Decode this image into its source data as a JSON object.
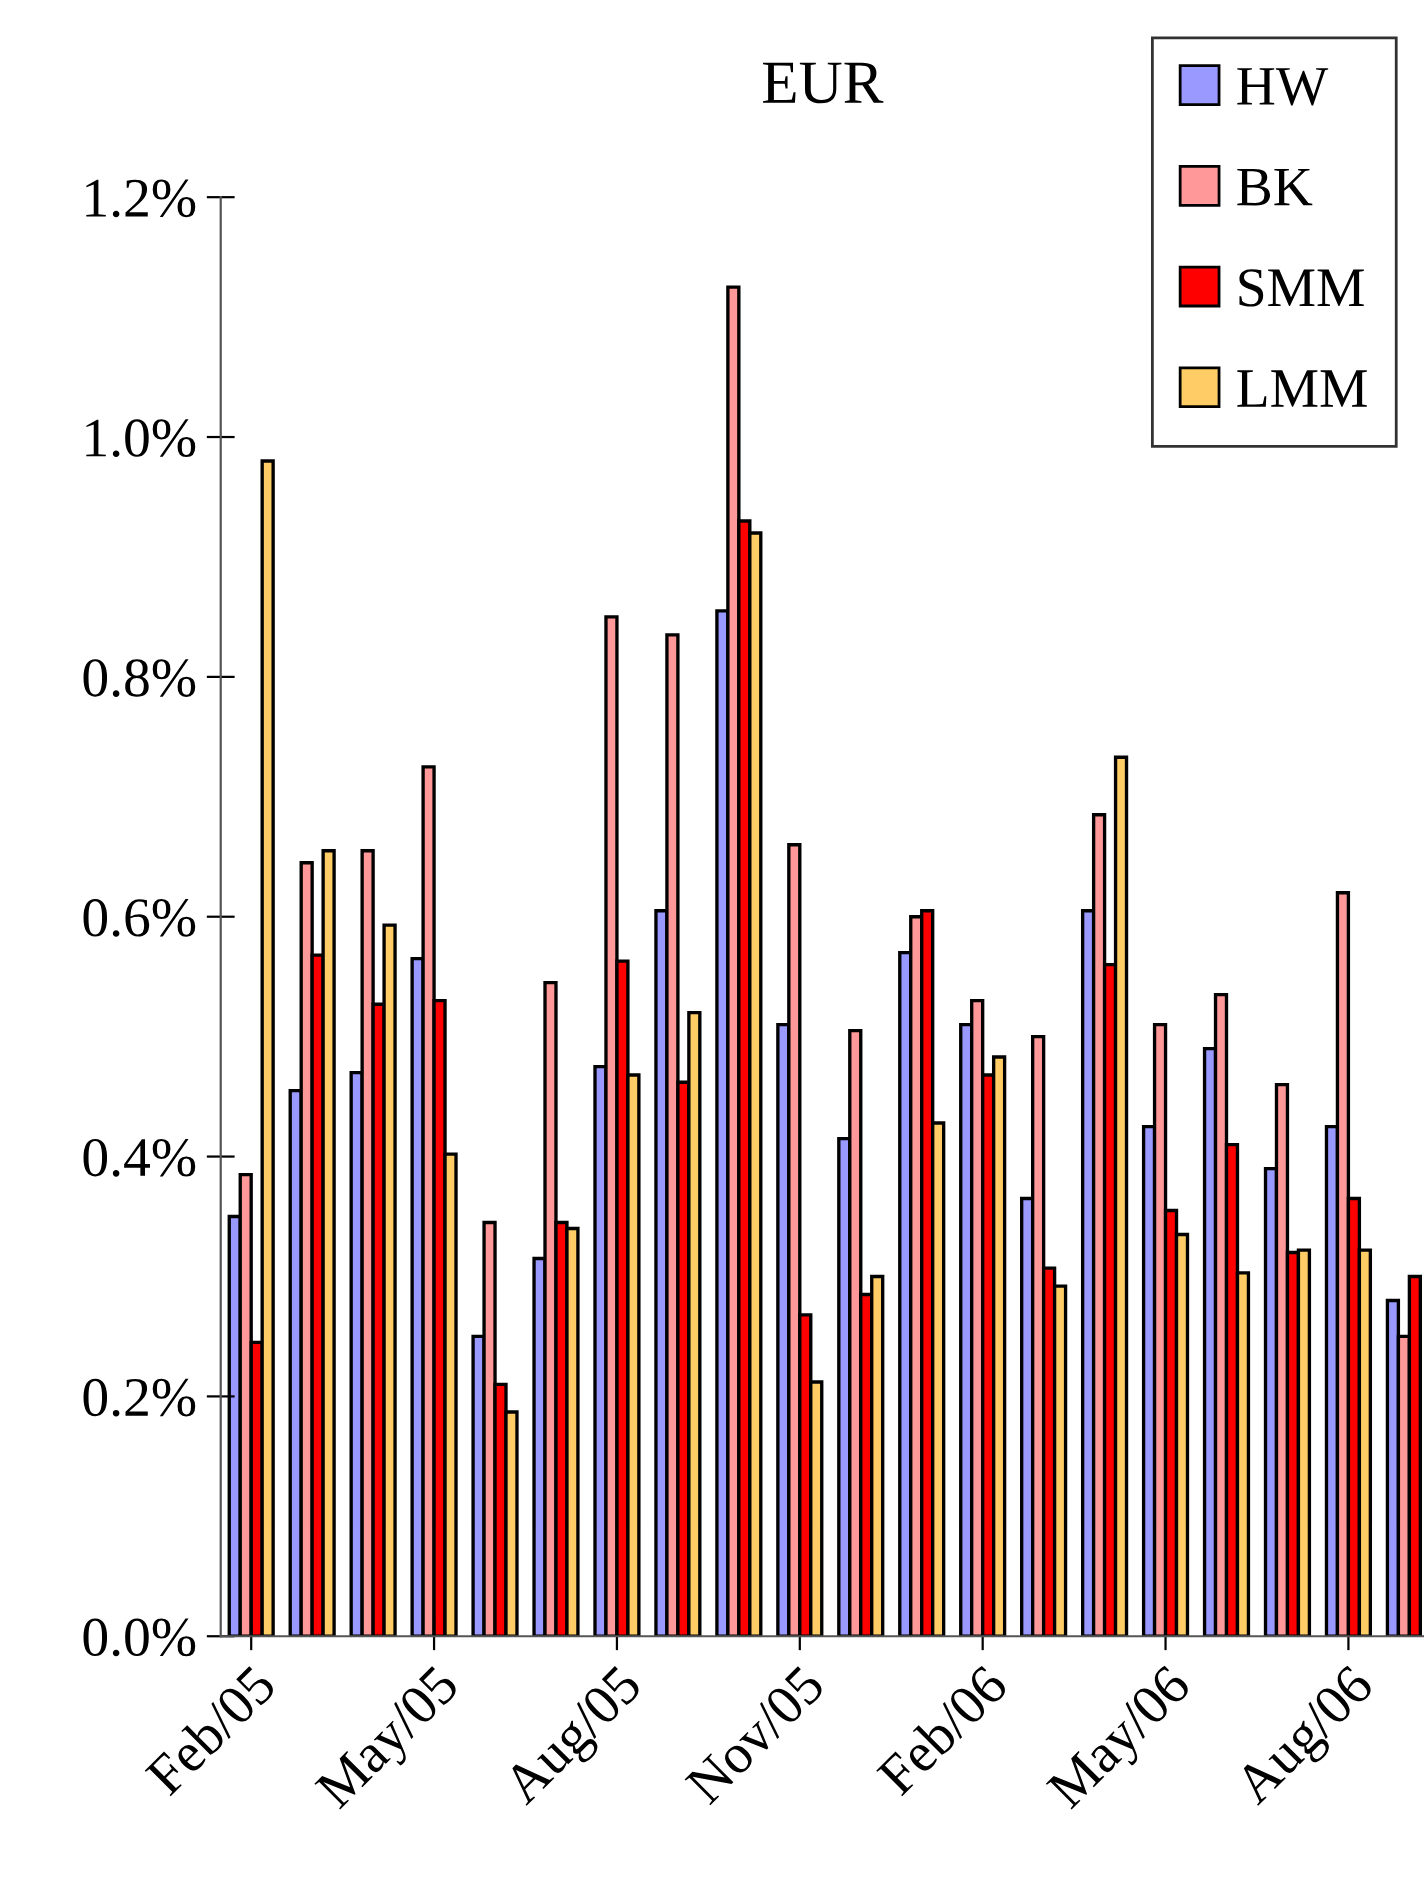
{
  "chart_data": {
    "type": "bar",
    "title": "EUR",
    "categories": [
      "Feb/05",
      null,
      null,
      "May/05",
      null,
      null,
      "Aug/05",
      null,
      null,
      "Nov/05",
      null,
      null,
      "Feb/06",
      null,
      null,
      "May/06",
      null,
      null,
      "Aug/06",
      null
    ],
    "series": [
      {
        "name": "HW",
        "color": "#9999ff",
        "values": [
          0.35,
          0.455,
          0.47,
          0.565,
          0.25,
          0.315,
          0.475,
          0.605,
          0.855,
          0.51,
          0.415,
          0.57,
          0.51,
          0.365,
          0.605,
          0.425,
          0.49,
          0.39,
          0.425,
          0.28
        ]
      },
      {
        "name": "BK",
        "color": "#ff9999",
        "values": [
          0.385,
          0.645,
          0.655,
          0.725,
          0.345,
          0.545,
          0.85,
          0.835,
          1.125,
          0.66,
          0.505,
          0.6,
          0.53,
          0.5,
          0.685,
          0.51,
          0.535,
          0.46,
          0.62,
          0.25
        ]
      },
      {
        "name": "SMM",
        "color": "#ff0000",
        "values": [
          0.245,
          0.568,
          0.527,
          0.53,
          0.21,
          0.345,
          0.563,
          0.462,
          0.93,
          0.268,
          0.285,
          0.605,
          0.468,
          0.307,
          0.56,
          0.355,
          0.41,
          0.32,
          0.365,
          0.3
        ]
      },
      {
        "name": "LMM",
        "color": "#ffcc66",
        "values": [
          0.98,
          0.655,
          0.593,
          0.402,
          0.187,
          0.34,
          0.468,
          0.52,
          0.92,
          0.212,
          0.3,
          0.428,
          0.483,
          0.292,
          0.733,
          0.335,
          0.303,
          0.322,
          0.322,
          null
        ]
      }
    ],
    "ylim": [
      0,
      1.2
    ],
    "yticks": [
      {
        "value": 0,
        "label": "0.0%"
      },
      {
        "value": 0.2,
        "label": "0.2%"
      },
      {
        "value": 0.4,
        "label": "0.4%"
      },
      {
        "value": 0.6,
        "label": "0.6%"
      },
      {
        "value": 0.8,
        "label": "0.8%"
      },
      {
        "value": 1.0,
        "label": "1.0%"
      },
      {
        "value": 1.2,
        "label": "1.2%"
      }
    ],
    "legend": "top right",
    "grid": false
  }
}
